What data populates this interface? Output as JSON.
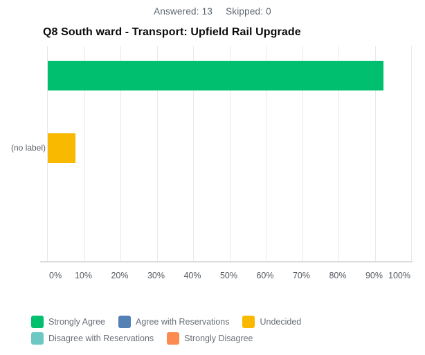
{
  "header": {
    "answered_label": "Answered:",
    "answered_value": "13",
    "skipped_label": "Skipped:",
    "skipped_value": "0"
  },
  "title": "Q8 South ward - Transport: Upfield Rail Upgrade",
  "chart_data": {
    "type": "bar",
    "orientation": "horizontal",
    "title": "Q8 South ward - Transport: Upfield Rail Upgrade",
    "categories": [
      "(no label)"
    ],
    "series": [
      {
        "name": "Strongly Agree",
        "color": "#00BF6F",
        "values": [
          92.31
        ]
      },
      {
        "name": "Agree with Reservations",
        "color": "#5380B5",
        "values": [
          0
        ]
      },
      {
        "name": "Undecided",
        "color": "#F8B900",
        "values": [
          7.69
        ]
      },
      {
        "name": "Disagree with Reservations",
        "color": "#6DC8C4",
        "values": [
          0
        ]
      },
      {
        "name": "Strongly Disagree",
        "color": "#FB8B4F",
        "values": [
          0
        ]
      }
    ],
    "x_ticks": [
      "0%",
      "10%",
      "20%",
      "30%",
      "40%",
      "50%",
      "60%",
      "70%",
      "80%",
      "90%",
      "100%"
    ],
    "xlim": [
      0,
      100
    ],
    "grid": true,
    "legend_position": "bottom"
  }
}
